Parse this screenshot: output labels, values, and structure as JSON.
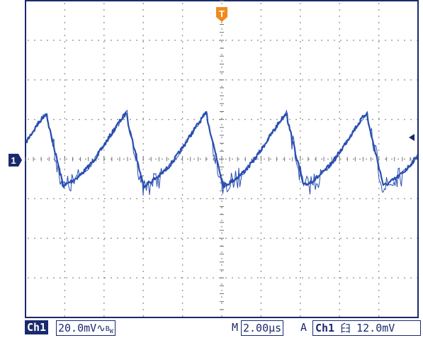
{
  "markers": {
    "trigger_position": "T",
    "channel_ground": "1"
  },
  "status_bar": {
    "channel": "Ch1",
    "volts_per_div": "20.0mV",
    "coupling_symbol": "∿",
    "bandwidth_symbol": "B",
    "bandwidth_sub": "W",
    "timebase_prefix": "M",
    "timebase": "2.00µs",
    "acquisition_label": "A",
    "trigger_source": "Ch1",
    "trigger_slope": "⺽",
    "trigger_level": "12.0mV"
  },
  "colors": {
    "grid_dots": "#6f6f6f",
    "frame": "#1a2a6e",
    "trace": "#2a4fb0",
    "trigger_marker": "#f08a1c",
    "channel_marker": "#1a2a6e"
  }
}
